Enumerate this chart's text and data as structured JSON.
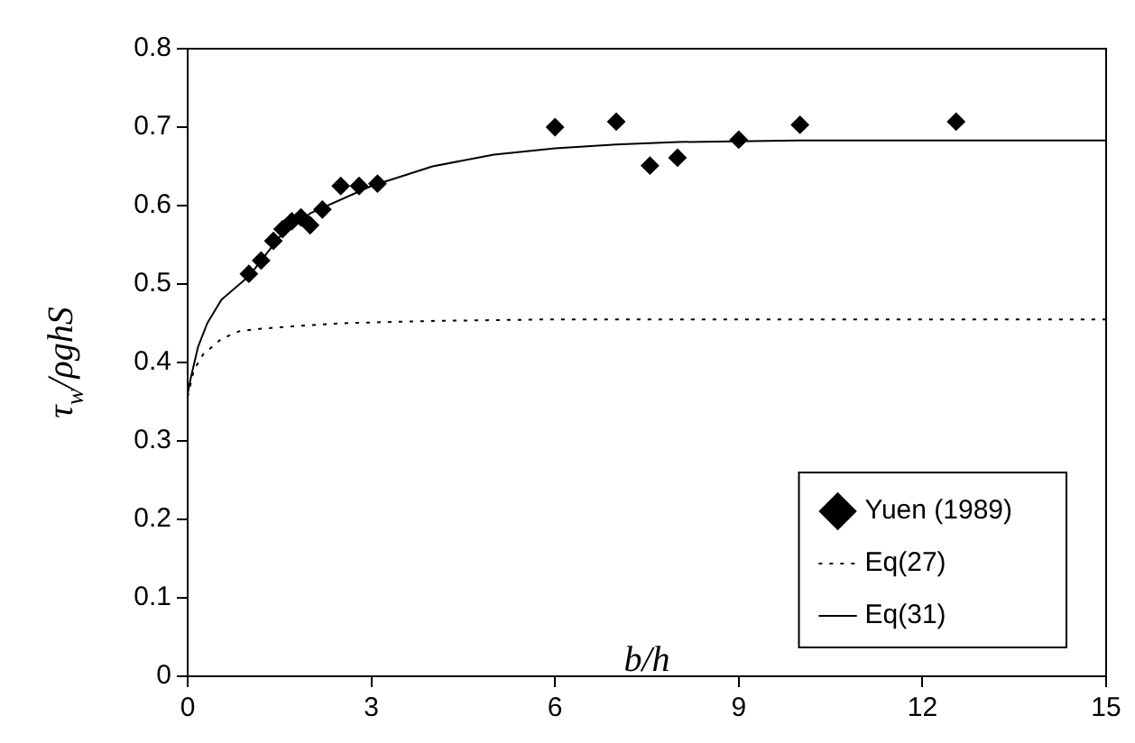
{
  "chart_data": {
    "type": "scatter",
    "xlabel": "b/h",
    "ylabel": "τ$_{w}$/ρghS",
    "xlim": [
      0,
      15
    ],
    "xticks": [
      0,
      3,
      6,
      9,
      12,
      15
    ],
    "ylim": [
      0,
      0.8
    ],
    "yticks": [
      0,
      0.1,
      0.2,
      0.3,
      0.4,
      0.5,
      0.6,
      0.7,
      0.8
    ],
    "grid": false,
    "legend": "bottom right",
    "series": [
      {
        "name": "Yuen (1989)",
        "marker": "diamond",
        "color": "#000000",
        "x": [
          1.0,
          1.2,
          1.4,
          1.55,
          1.7,
          1.85,
          2.0,
          2.2,
          2.5,
          2.8,
          3.1,
          6.0,
          7.0,
          7.55,
          8.0,
          9.0,
          10.0,
          12.55
        ],
        "values": [
          0.513,
          0.53,
          0.555,
          0.57,
          0.58,
          0.585,
          0.575,
          0.595,
          0.625,
          0.625,
          0.628,
          0.7,
          0.707,
          0.651,
          0.661,
          0.684,
          0.703,
          0.707
        ]
      },
      {
        "name": "Eq(27)",
        "type": "line",
        "line_style": "dotted",
        "marker": "none",
        "color": "#000000",
        "x": [
          0,
          0.1,
          0.25,
          0.55,
          0.85,
          1.2,
          1.7,
          2.5,
          4,
          6,
          8,
          10,
          15
        ],
        "values": [
          0.356,
          0.39,
          0.41,
          0.43,
          0.44,
          0.443,
          0.446,
          0.45,
          0.453,
          0.455,
          0.455,
          0.455,
          0.455
        ]
      },
      {
        "name": "Eq(31)",
        "type": "line",
        "line_style": "solid",
        "marker": "none",
        "color": "#000000",
        "x": [
          0,
          0.05,
          0.17,
          0.32,
          0.55,
          1.0,
          1.5,
          2,
          3,
          4,
          5,
          6,
          7,
          8,
          10,
          15
        ],
        "values": [
          0.36,
          0.38,
          0.42,
          0.45,
          0.48,
          0.51,
          0.56,
          0.59,
          0.625,
          0.65,
          0.665,
          0.673,
          0.678,
          0.681,
          0.683,
          0.683
        ]
      }
    ]
  }
}
